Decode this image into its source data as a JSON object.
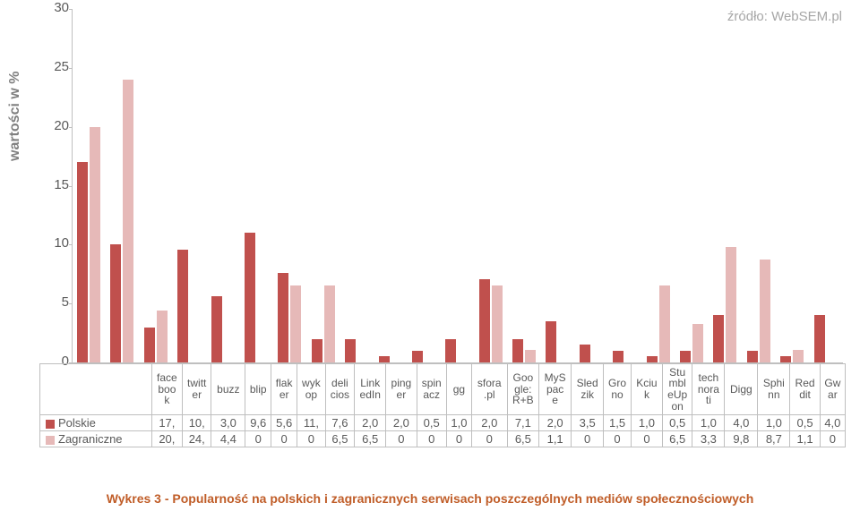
{
  "source_text": "źródło: WebSEM.pl",
  "ylabel": "wartości w %",
  "caption": "Wykres 3 - Popularność na polskich i zagranicznych serwisach poszczególnych mediów społecznościowych",
  "chart": {
    "type": "bar",
    "ylim": [
      0,
      30
    ],
    "ytick_step": 5,
    "plot_bg": "#ffffff",
    "grid_color": "#bfbfbf",
    "categories": [
      "face boo k",
      "twitt er",
      "buzz",
      "blip",
      "flak er",
      "wyk op",
      "deli cios",
      "Link edIn",
      "ping er",
      "spin acz",
      "gg",
      "sfora .pl",
      "Goo gle: R+B",
      "MyS pac e",
      "Sled zik",
      "Gro no",
      "Kciu k",
      "Stu mbl eUp on",
      "tech nora ti",
      "Digg",
      "Sphi nn",
      "Red dit",
      "Gw ar"
    ],
    "series": [
      {
        "name": "Polskie",
        "color": "#c0504d",
        "values": [
          17,
          10,
          3.0,
          9.6,
          5.6,
          11,
          7.6,
          2.0,
          2.0,
          0.5,
          1.0,
          2.0,
          7.1,
          2.0,
          3.5,
          1.5,
          1.0,
          0.5,
          1.0,
          4.0,
          1.0,
          0.5,
          4.0
        ],
        "display": [
          "17,",
          "10,",
          "3,0",
          "9,6",
          "5,6",
          "11,",
          "7,6",
          "2,0",
          "2,0",
          "0,5",
          "1,0",
          "2,0",
          "7,1",
          "2,0",
          "3,5",
          "1,5",
          "1,0",
          "0,5",
          "1,0",
          "4,0",
          "1,0",
          "0,5",
          "4,0"
        ]
      },
      {
        "name": "Zagraniczne",
        "color": "#e6b9b8",
        "values": [
          20,
          24,
          4.4,
          0,
          0,
          0,
          6.5,
          6.5,
          0,
          0,
          0,
          0,
          6.5,
          1.1,
          0,
          0,
          0,
          6.5,
          3.3,
          9.8,
          8.7,
          1.1,
          0
        ],
        "display": [
          "20,",
          "24,",
          "4,4",
          "0",
          "0",
          "0",
          "6,5",
          "6,5",
          "0",
          "0",
          "0",
          "0",
          "6,5",
          "1,1",
          "0",
          "0",
          "0",
          "6,5",
          "3,3",
          "9,8",
          "8,7",
          "1,1",
          "0"
        ]
      }
    ],
    "label_fontsize": 13,
    "title_fontsize": 14
  }
}
